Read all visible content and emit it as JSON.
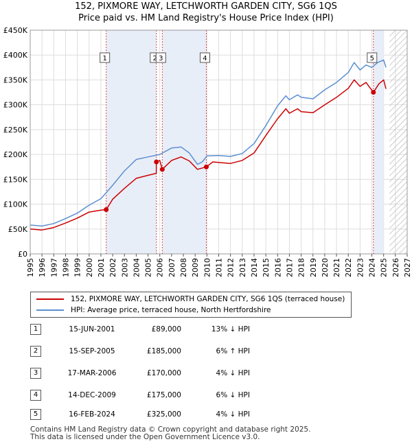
{
  "title_line1": "152, PIXMORE WAY, LETCHWORTH GARDEN CITY, SG6 1QS",
  "title_line2": "Price paid vs. HM Land Registry's House Price Index (HPI)",
  "chart_data": {
    "type": "line",
    "xlim": [
      1995,
      2027
    ],
    "ylim": [
      0,
      450000
    ],
    "yticks": [
      0,
      50000,
      100000,
      150000,
      200000,
      250000,
      300000,
      350000,
      400000,
      450000
    ],
    "ytick_labels": [
      "£0",
      "£50K",
      "£100K",
      "£150K",
      "£200K",
      "£250K",
      "£300K",
      "£350K",
      "£400K",
      "£450K"
    ],
    "xticks": [
      "1995",
      "1996",
      "1997",
      "1998",
      "1999",
      "2000",
      "2001",
      "2002",
      "2003",
      "2004",
      "2005",
      "2006",
      "2007",
      "2008",
      "2009",
      "2010",
      "2011",
      "2012",
      "2013",
      "2014",
      "2015",
      "2016",
      "2017",
      "2018",
      "2019",
      "2020",
      "2021",
      "2022",
      "2023",
      "2024",
      "2025",
      "2026",
      "2027"
    ],
    "shaded_spans": [
      [
        2001.45,
        2005.71
      ],
      [
        2006.21,
        2009.95
      ],
      [
        2024.13,
        2025.0
      ]
    ],
    "projection_from": 2025.5,
    "series": [
      {
        "name": "HPI: Average price, terraced house, North Hertfordshire",
        "color": "#5b8fd0",
        "x": [
          1995,
          1996,
          1997,
          1998,
          1999,
          2000,
          2001,
          2002,
          2003,
          2004,
          2005,
          2006,
          2007,
          2007.8,
          2008.5,
          2009.2,
          2009.6,
          2010,
          2011,
          2012,
          2013,
          2014,
          2015,
          2016,
          2016.7,
          2017,
          2017.7,
          2018,
          2019,
          2020,
          2021,
          2022,
          2022.5,
          2023,
          2023.5,
          2024,
          2024.5,
          2025,
          2025.2
        ],
        "values": [
          58000,
          56000,
          61000,
          71000,
          82000,
          98000,
          111000,
          138000,
          167000,
          190000,
          195000,
          200000,
          213000,
          215000,
          203000,
          180000,
          185000,
          197000,
          198000,
          196000,
          202000,
          222000,
          258000,
          298000,
          318000,
          310000,
          320000,
          315000,
          312000,
          330000,
          345000,
          365000,
          385000,
          370000,
          380000,
          375000,
          385000,
          390000,
          375000
        ]
      },
      {
        "name": "152, PIXMORE WAY, LETCHWORTH GARDEN CITY, SG6 1QS (terraced house)",
        "color": "#cc0000",
        "x": [
          1995,
          1996,
          1997,
          1998,
          1999,
          2000,
          2001,
          2001.45,
          2002,
          2003,
          2004,
          2005,
          2005.7,
          2005.71,
          2006,
          2006.21,
          2007,
          2007.8,
          2008.5,
          2009.2,
          2009.95,
          2010.5,
          2011,
          2012,
          2013,
          2014,
          2015,
          2016,
          2016.7,
          2017,
          2017.7,
          2018,
          2019,
          2020,
          2021,
          2022,
          2022.5,
          2023,
          2023.5,
          2024.13,
          2024.6,
          2025,
          2025.2
        ],
        "values": [
          50000,
          48000,
          53000,
          62000,
          72000,
          84000,
          88000,
          89000,
          110000,
          132000,
          152000,
          158000,
          162000,
          185000,
          188000,
          170000,
          188000,
          195000,
          187000,
          170000,
          175000,
          185000,
          184000,
          182000,
          188000,
          203000,
          238000,
          272000,
          292000,
          283000,
          292000,
          286000,
          284000,
          300000,
          315000,
          333000,
          350000,
          337000,
          345000,
          325000,
          342000,
          350000,
          332000
        ]
      }
    ],
    "sales": [
      {
        "label": "1",
        "x": 2001.45,
        "value": 89000
      },
      {
        "label": "2",
        "x": 2005.71,
        "value": 185000
      },
      {
        "label": "3",
        "x": 2006.21,
        "value": 170000
      },
      {
        "label": "4",
        "x": 2009.95,
        "value": 175000
      },
      {
        "label": "5",
        "x": 2024.13,
        "value": 325000
      }
    ]
  },
  "legend": {
    "property_label": "152, PIXMORE WAY, LETCHWORTH GARDEN CITY, SG6 1QS (terraced house)",
    "hpi_label": "HPI: Average price, terraced house, North Hertfordshire"
  },
  "transactions": [
    {
      "num": "1",
      "date": "15-JUN-2001",
      "price": "£89,000",
      "hpi": "13% ↓ HPI"
    },
    {
      "num": "2",
      "date": "15-SEP-2005",
      "price": "£185,000",
      "hpi": "6% ↑ HPI"
    },
    {
      "num": "3",
      "date": "17-MAR-2006",
      "price": "£170,000",
      "hpi": "4% ↓ HPI"
    },
    {
      "num": "4",
      "date": "14-DEC-2009",
      "price": "£175,000",
      "hpi": "6% ↓ HPI"
    },
    {
      "num": "5",
      "date": "16-FEB-2024",
      "price": "£325,000",
      "hpi": "4% ↓ HPI"
    }
  ],
  "footer_line1": "Contains HM Land Registry data © Crown copyright and database right 2025.",
  "footer_line2": "This data is licensed under the Open Government Licence v3.0."
}
